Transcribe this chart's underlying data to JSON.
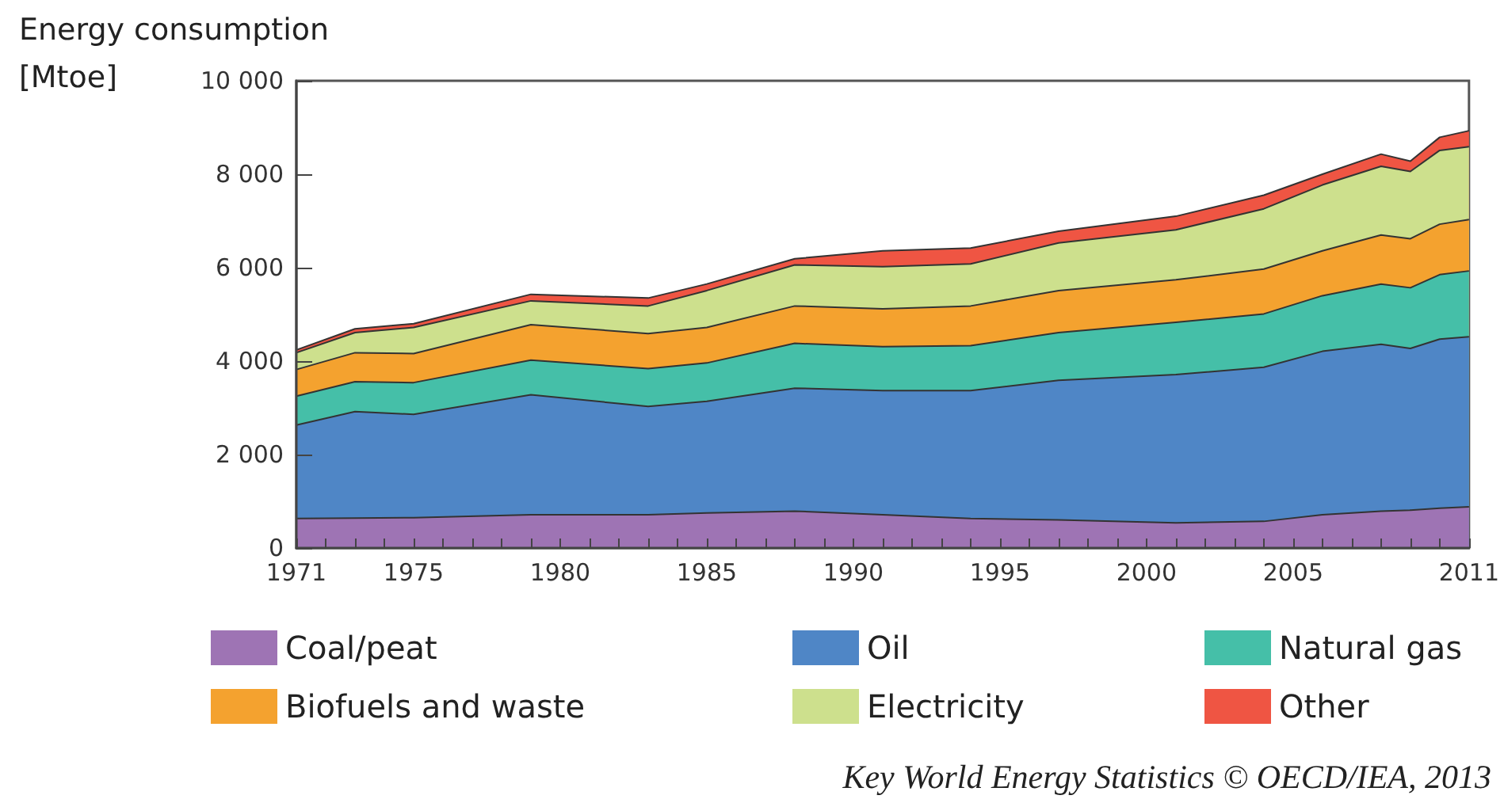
{
  "chart_data": {
    "type": "area",
    "stacked": true,
    "ylabel": "Energy consumption\n[Mtoe]",
    "x": [
      1971,
      1973,
      1975,
      1979,
      1983,
      1985,
      1988,
      1991,
      1994,
      1997,
      2001,
      2004,
      2006,
      2008,
      2009,
      2010,
      2011
    ],
    "series": [
      {
        "name": "Coal/peat",
        "color": "#9e74b4",
        "values": [
          630,
          640,
          650,
          710,
          710,
          750,
          790,
          710,
          630,
          600,
          540,
          570,
          710,
          790,
          810,
          850,
          880
        ]
      },
      {
        "name": "Oil",
        "color": "#4f86c6",
        "values": [
          2000,
          2280,
          2210,
          2570,
          2320,
          2390,
          2630,
          2660,
          2740,
          2990,
          3170,
          3300,
          3500,
          3570,
          3460,
          3620,
          3640
        ]
      },
      {
        "name": "Natural gas",
        "color": "#45bfa8",
        "values": [
          620,
          640,
          680,
          740,
          810,
          820,
          960,
          940,
          960,
          1020,
          1120,
          1140,
          1190,
          1290,
          1300,
          1380,
          1410
        ]
      },
      {
        "name": "Biofuels and waste",
        "color": "#f4a22f",
        "values": [
          570,
          620,
          620,
          760,
          750,
          760,
          800,
          810,
          850,
          900,
          910,
          960,
          960,
          1050,
          1050,
          1080,
          1100
        ]
      },
      {
        "name": "Electricity",
        "color": "#cde08d",
        "values": [
          360,
          430,
          560,
          510,
          590,
          790,
          880,
          900,
          900,
          1020,
          1070,
          1290,
          1410,
          1470,
          1440,
          1580,
          1560
        ]
      },
      {
        "name": "Other",
        "color": "#ef5543",
        "values": [
          60,
          80,
          80,
          140,
          170,
          140,
          130,
          340,
          340,
          250,
          290,
          290,
          230,
          260,
          220,
          280,
          340
        ]
      }
    ],
    "xlim": [
      1971,
      2011
    ],
    "xticks": [
      1971,
      {
        "value": 1972,
        "label": null
      },
      {
        "value": 1973,
        "label": null
      },
      {
        "value": 1974,
        "label": null
      },
      1975,
      {
        "value": 1976,
        "label": null
      },
      {
        "value": 1977,
        "label": null
      },
      {
        "value": 1978,
        "label": null
      },
      {
        "value": 1979,
        "label": null
      },
      1980,
      {
        "value": 1981,
        "label": null
      },
      {
        "value": 1982,
        "label": null
      },
      {
        "value": 1983,
        "label": null
      },
      {
        "value": 1984,
        "label": null
      },
      1985,
      {
        "value": 1986,
        "label": null
      },
      {
        "value": 1987,
        "label": null
      },
      {
        "value": 1988,
        "label": null
      },
      {
        "value": 1989,
        "label": null
      },
      1990,
      {
        "value": 1991,
        "label": null
      },
      {
        "value": 1992,
        "label": null
      },
      {
        "value": 1993,
        "label": null
      },
      {
        "value": 1994,
        "label": null
      },
      1995,
      {
        "value": 1996,
        "label": null
      },
      {
        "value": 1997,
        "label": null
      },
      {
        "value": 1998,
        "label": null
      },
      {
        "value": 1999,
        "label": null
      },
      2000,
      {
        "value": 2001,
        "label": null
      },
      {
        "value": 2002,
        "label": null
      },
      {
        "value": 2003,
        "label": null
      },
      {
        "value": 2004,
        "label": null
      },
      2005,
      {
        "value": 2006,
        "label": null
      },
      {
        "value": 2007,
        "label": null
      },
      {
        "value": 2008,
        "label": null
      },
      {
        "value": 2009,
        "label": null
      },
      {
        "value": 2010,
        "label": null
      },
      2011
    ],
    "ylim": [
      0,
      10000
    ],
    "yticks": [
      0,
      {
        "value": 2000,
        "label": "2 000"
      },
      {
        "value": 4000,
        "label": "4 000"
      },
      {
        "value": 6000,
        "label": "6 000"
      },
      {
        "value": 8000,
        "label": "8 000"
      },
      {
        "value": 10000,
        "label": "10 000"
      }
    ],
    "legend": "bottom",
    "annotations": [
      "Key World Energy Statistics © OECD/IEA, 2013"
    ]
  }
}
